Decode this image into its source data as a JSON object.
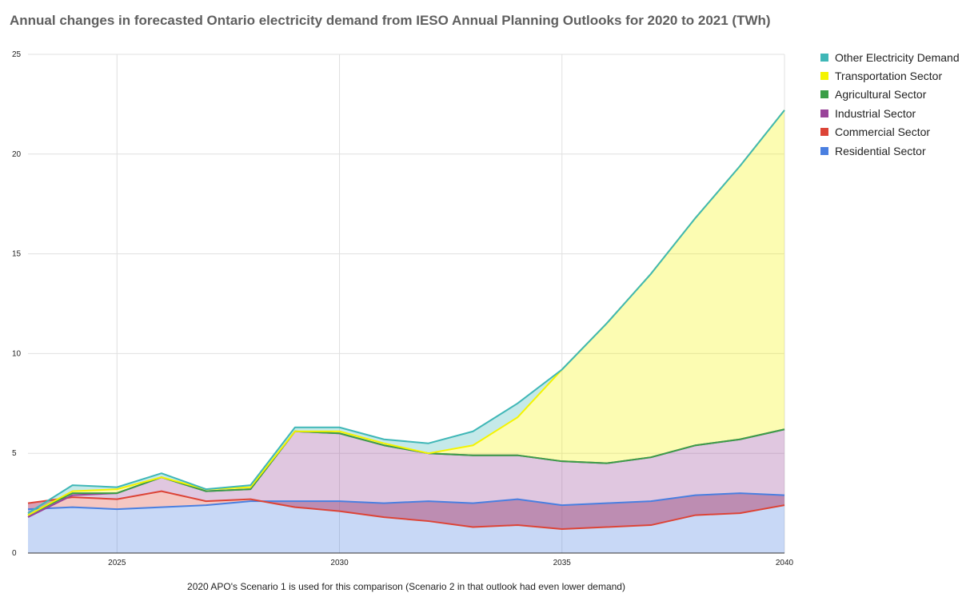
{
  "chart_data": {
    "type": "area",
    "stacked": true,
    "title": "Annual changes in forecasted Ontario electricity demand from IESO Annual Planning Outlooks for 2020 to 2021 (TWh)",
    "xlabel": "2020 APO's Scenario 1 is used for this comparison (Scenario 2 in that outlook had even lower demand)",
    "ylabel": "",
    "x": [
      2023,
      2024,
      2025,
      2026,
      2027,
      2028,
      2029,
      2030,
      2031,
      2032,
      2033,
      2034,
      2035,
      2036,
      2037,
      2038,
      2039,
      2040
    ],
    "xlim": [
      2023,
      2040
    ],
    "ylim": [
      0,
      25
    ],
    "xticks": [
      "2025",
      "2030",
      "2035",
      "2040"
    ],
    "xtick_values": [
      2025,
      2030,
      2035,
      2040
    ],
    "yticks": [
      "0",
      "5",
      "10",
      "15",
      "20",
      "25"
    ],
    "ytick_values": [
      0,
      5,
      10,
      15,
      20,
      25
    ],
    "legend_position": "right",
    "series": [
      {
        "name": "Residential Sector",
        "color": "#4a7fe0",
        "values": [
          2.2,
          2.3,
          2.2,
          2.3,
          2.4,
          2.6,
          2.6,
          2.6,
          2.5,
          2.6,
          2.5,
          2.7,
          2.4,
          2.5,
          2.6,
          2.9,
          3.0,
          2.9
        ]
      },
      {
        "name": "Commercial Sector",
        "color": "#dc4437",
        "values": [
          0.3,
          0.5,
          0.5,
          0.8,
          0.2,
          0.1,
          -0.3,
          -0.5,
          -0.7,
          -1.0,
          -1.2,
          -1.3,
          -1.2,
          -1.2,
          -1.2,
          -1.0,
          -1.0,
          -0.5
        ]
      },
      {
        "name": "Industrial Sector",
        "color": "#994499",
        "values": [
          -0.7,
          0.1,
          0.3,
          0.7,
          0.5,
          0.5,
          3.8,
          3.9,
          3.6,
          3.4,
          3.6,
          3.5,
          3.4,
          3.2,
          3.4,
          3.5,
          3.7,
          3.8
        ]
      },
      {
        "name": "Agricultural Sector",
        "color": "#3a9e47",
        "values": [
          0.1,
          0.1,
          0.0,
          0.0,
          0.0,
          0.0,
          0.0,
          0.0,
          0.0,
          0.0,
          0.0,
          0.0,
          0.0,
          0.0,
          0.0,
          0.0,
          0.0,
          0.0
        ]
      },
      {
        "name": "Transportation Sector",
        "color": "#f4f400",
        "values": [
          0.0,
          0.1,
          0.2,
          0.0,
          0.1,
          0.1,
          0.0,
          0.1,
          0.1,
          0.0,
          0.5,
          1.9,
          4.6,
          7.0,
          9.2,
          11.4,
          13.7,
          16.0
        ]
      },
      {
        "name": "Other Electricity Demand",
        "color": "#3fb7b7",
        "values": [
          0.1,
          0.3,
          0.1,
          0.2,
          0.0,
          0.1,
          0.2,
          0.2,
          0.2,
          0.5,
          0.7,
          0.7,
          0.0,
          0.0,
          0.0,
          0.0,
          0.0,
          0.0
        ]
      }
    ]
  }
}
